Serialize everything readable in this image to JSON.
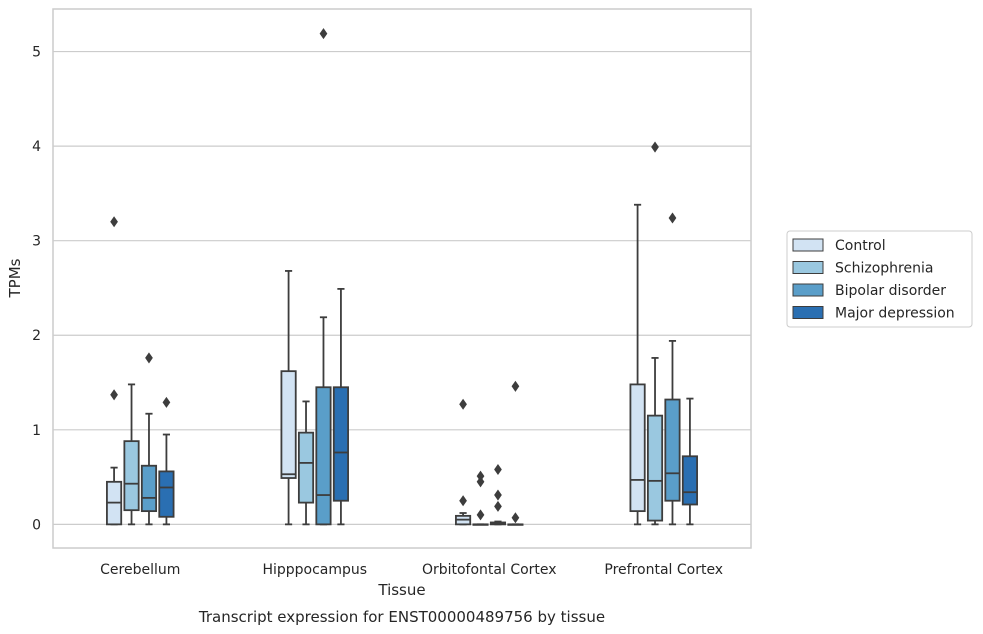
{
  "chart_data": {
    "type": "box",
    "title": "",
    "caption": "Transcript expression for ENST00000489756 by tissue",
    "xlabel": "Tissue",
    "ylabel": "TPMs",
    "ylim": [
      -0.25,
      5.45
    ],
    "yticks": [
      0,
      1,
      2,
      3,
      4,
      5
    ],
    "grid": "horizontal",
    "legend_position": "right",
    "categories": [
      "Cerebellum",
      "Hipppocampus",
      "Orbitofontal Cortex",
      "Prefrontal Cortex"
    ],
    "series": [
      {
        "name": "Control",
        "color": "#d2e3f3",
        "boxes": [
          {
            "q1": 0.0,
            "median": 0.23,
            "q3": 0.45,
            "whisker_low": 0.0,
            "whisker_high": 0.6,
            "outliers": [
              1.37,
              3.2
            ]
          },
          {
            "q1": 0.49,
            "median": 0.53,
            "q3": 1.62,
            "whisker_low": 0.0,
            "whisker_high": 2.68,
            "outliers": []
          },
          {
            "q1": 0.0,
            "median": 0.05,
            "q3": 0.09,
            "whisker_low": 0.0,
            "whisker_high": 0.12,
            "outliers": [
              0.25,
              1.27
            ]
          },
          {
            "q1": 0.14,
            "median": 0.47,
            "q3": 1.48,
            "whisker_low": 0.0,
            "whisker_high": 3.38,
            "outliers": []
          }
        ]
      },
      {
        "name": "Schizophrenia",
        "color": "#9ac8e0",
        "boxes": [
          {
            "q1": 0.15,
            "median": 0.43,
            "q3": 0.88,
            "whisker_low": 0.0,
            "whisker_high": 1.48,
            "outliers": []
          },
          {
            "q1": 0.23,
            "median": 0.65,
            "q3": 0.97,
            "whisker_low": 0.0,
            "whisker_high": 1.3,
            "outliers": []
          },
          {
            "q1": 0.0,
            "median": 0.0,
            "q3": 0.0,
            "whisker_low": 0.0,
            "whisker_high": 0.0,
            "outliers": [
              0.1,
              0.45,
              0.51
            ]
          },
          {
            "q1": 0.04,
            "median": 0.46,
            "q3": 1.15,
            "whisker_low": 0.0,
            "whisker_high": 1.76,
            "outliers": [
              3.99
            ]
          }
        ]
      },
      {
        "name": "Bipolar disorder",
        "color": "#5a9ec9",
        "boxes": [
          {
            "q1": 0.14,
            "median": 0.28,
            "q3": 0.62,
            "whisker_low": 0.0,
            "whisker_high": 1.17,
            "outliers": [
              1.76
            ]
          },
          {
            "q1": 0.0,
            "median": 0.31,
            "q3": 1.45,
            "whisker_low": 0.0,
            "whisker_high": 2.19,
            "outliers": [
              5.19
            ]
          },
          {
            "q1": 0.0,
            "median": 0.01,
            "q3": 0.02,
            "whisker_low": 0.0,
            "whisker_high": 0.03,
            "outliers": [
              0.19,
              0.31,
              0.58
            ]
          },
          {
            "q1": 0.25,
            "median": 0.54,
            "q3": 1.32,
            "whisker_low": 0.0,
            "whisker_high": 1.94,
            "outliers": [
              3.24
            ]
          }
        ]
      },
      {
        "name": "Major depression",
        "color": "#2a6fb2",
        "boxes": [
          {
            "q1": 0.08,
            "median": 0.39,
            "q3": 0.56,
            "whisker_low": 0.0,
            "whisker_high": 0.95,
            "outliers": [
              1.29
            ]
          },
          {
            "q1": 0.25,
            "median": 0.76,
            "q3": 1.45,
            "whisker_low": 0.0,
            "whisker_high": 2.49,
            "outliers": []
          },
          {
            "q1": 0.0,
            "median": 0.0,
            "q3": 0.0,
            "whisker_low": 0.0,
            "whisker_high": 0.0,
            "outliers": [
              0.07,
              1.46
            ]
          },
          {
            "q1": 0.21,
            "median": 0.34,
            "q3": 0.72,
            "whisker_low": 0.0,
            "whisker_high": 1.33,
            "outliers": []
          }
        ]
      }
    ]
  }
}
